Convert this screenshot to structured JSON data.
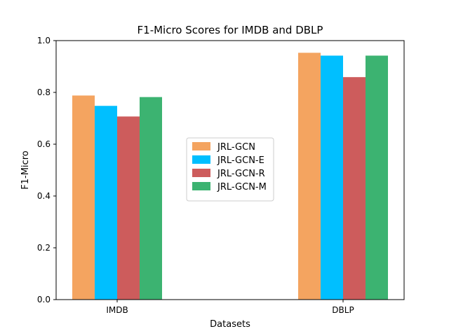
{
  "chart_data": {
    "type": "bar",
    "title": "F1-Micro Scores for IMDB and DBLP",
    "xlabel": "Datasets",
    "ylabel": "F1-Micro",
    "categories": [
      "IMDB",
      "DBLP"
    ],
    "ylim": [
      0,
      1.0
    ],
    "yticks": [
      "0.0",
      "0.2",
      "0.4",
      "0.6",
      "0.8",
      "1.0"
    ],
    "grid": false,
    "legend_position": "center",
    "series": [
      {
        "name": "JRL-GCN",
        "color": "#F4A460",
        "values": [
          0.788,
          0.953
        ]
      },
      {
        "name": "JRL-GCN-E",
        "color": "#00BFFF",
        "values": [
          0.748,
          0.942
        ]
      },
      {
        "name": "JRL-GCN-R",
        "color": "#CD5C5C",
        "values": [
          0.707,
          0.859
        ]
      },
      {
        "name": "JRL-GCN-M",
        "color": "#3CB371",
        "values": [
          0.782,
          0.942
        ]
      }
    ]
  }
}
